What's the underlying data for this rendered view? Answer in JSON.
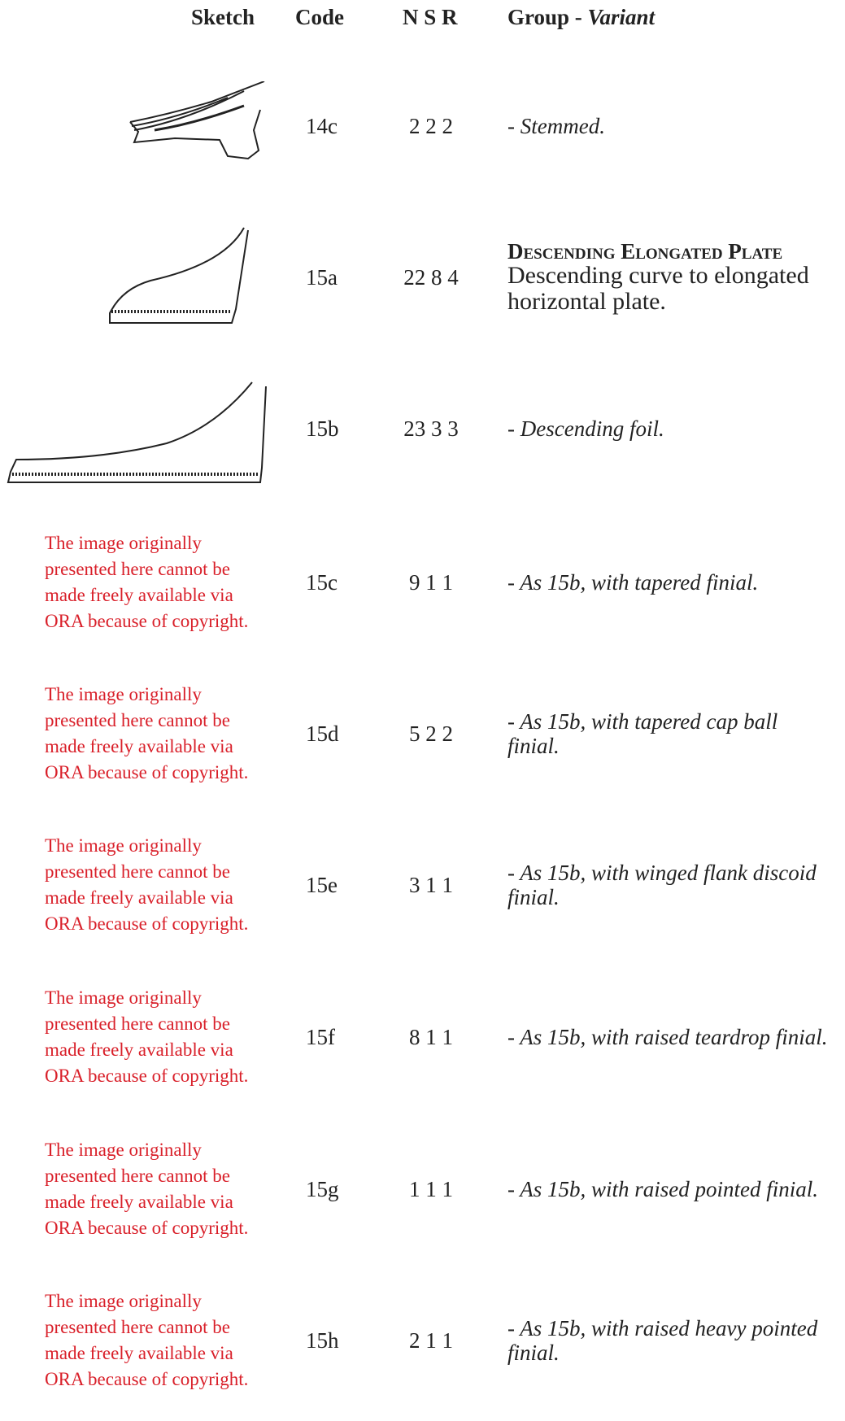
{
  "header": {
    "sketch": "Sketch",
    "code": "Code",
    "nsr": "N S R",
    "group": "Group -",
    "variant": "Variant"
  },
  "rows": [
    {
      "code": "14c",
      "nsr": "2 2 2",
      "variant": "- Stemmed."
    },
    {
      "code": "15a",
      "nsr": "22 8 4",
      "group_title": "Descending Elongated Plate",
      "description": "Descending curve to elongated horizontal plate."
    },
    {
      "code": "15b",
      "nsr": "23 3 3",
      "variant": "- Descending foil."
    },
    {
      "notice": "The image originally presented here cannot be made freely available via ORA because of copyright.",
      "code": "15c",
      "nsr": "9 1 1",
      "variant": "- As 15b, with tapered finial."
    },
    {
      "notice": "The image originally presented here cannot be made freely available via ORA because of copyright.",
      "code": "15d",
      "nsr": "5 2 2",
      "variant": "- As 15b, with tapered cap ball finial."
    },
    {
      "notice": "The image originally presented here cannot be made freely available via ORA because of copyright.",
      "code": "15e",
      "nsr": "3 1 1",
      "variant": "- As 15b, with winged flank discoid finial."
    },
    {
      "notice": "The image originally presented here cannot be made freely available via ORA because of copyright.",
      "code": "15f",
      "nsr": "8 1 1",
      "variant": "- As 15b, with raised teardrop finial."
    },
    {
      "notice": "The image originally presented here cannot be made freely available via ORA because of copyright.",
      "code": "15g",
      "nsr": "1 1 1",
      "variant": "- As 15b, with raised pointed finial."
    },
    {
      "notice": "The image originally presented here cannot be made freely available via ORA because of copyright.",
      "code": "15h",
      "nsr": "2 1 1",
      "variant": "- As 15b, with raised heavy pointed finial."
    }
  ]
}
